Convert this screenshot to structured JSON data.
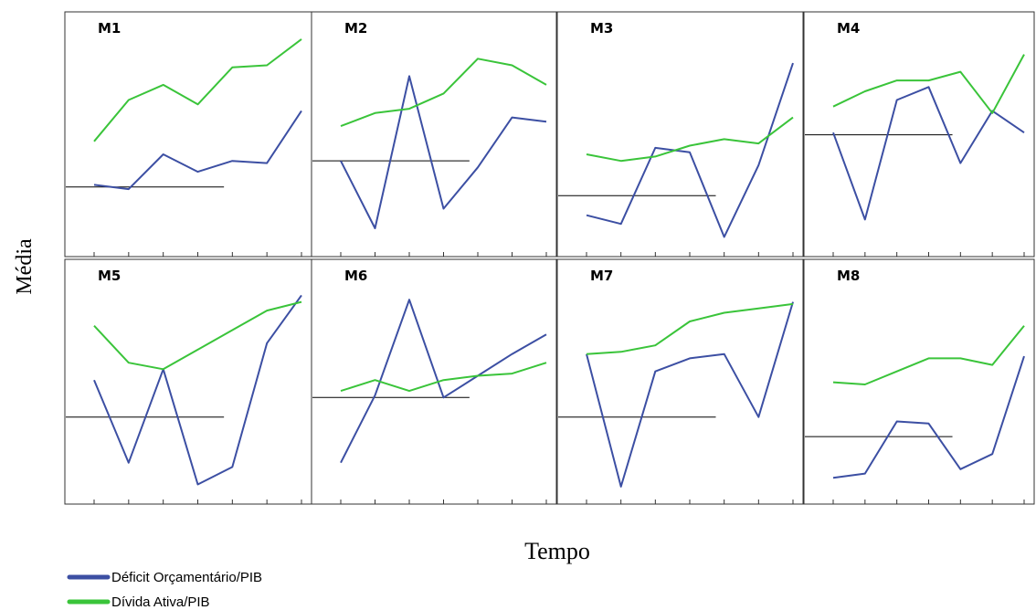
{
  "colors": {
    "deficit": "#3c4fa3",
    "divida": "#3ac43a",
    "reference": "#000000",
    "frame": "#333333"
  },
  "chart_data": {
    "type": "line",
    "xlabel": "Tempo",
    "ylabel": "Média",
    "grid": false,
    "ylim": [
      0,
      100
    ],
    "x": [
      1,
      2,
      3,
      4,
      5,
      6,
      7
    ],
    "legend": {
      "placement": "bottom-left",
      "entries": [
        {
          "label": "Déficit Orçamentário/PIB",
          "color": "#3c4fa3"
        },
        {
          "label": "Dívida Ativa/PIB",
          "color": "#3ac43a"
        }
      ]
    },
    "panels": [
      {
        "title": "M1",
        "reference": 27,
        "series": [
          {
            "name": "Déficit Orçamentário/PIB",
            "values": [
              28,
              26,
              42,
              34,
              39,
              38,
              62
            ]
          },
          {
            "name": "Dívida Ativa/PIB",
            "values": [
              48,
              67,
              74,
              65,
              82,
              83,
              95
            ]
          }
        ]
      },
      {
        "title": "M2",
        "reference": 39,
        "series": [
          {
            "name": "Déficit Orçamentário/PIB",
            "values": [
              39,
              8,
              78,
              17,
              36,
              59,
              57
            ]
          },
          {
            "name": "Dívida Ativa/PIB",
            "values": [
              55,
              61,
              63,
              70,
              86,
              83,
              74
            ]
          }
        ]
      },
      {
        "title": "M3",
        "reference": 23,
        "series": [
          {
            "name": "Déficit Orçamentário/PIB",
            "values": [
              14,
              10,
              45,
              43,
              4,
              37,
              84
            ]
          },
          {
            "name": "Dívida Ativa/PIB",
            "values": [
              42,
              39,
              41,
              46,
              49,
              47,
              59
            ]
          }
        ]
      },
      {
        "title": "M4",
        "reference": 51,
        "series": [
          {
            "name": "Déficit Orçamentário/PIB",
            "values": [
              52,
              12,
              67,
              73,
              38,
              62,
              52
            ]
          },
          {
            "name": "Dívida Ativa/PIB",
            "values": [
              64,
              71,
              76,
              76,
              80,
              61,
              88
            ]
          }
        ]
      },
      {
        "title": "M5",
        "reference": 35,
        "series": [
          {
            "name": "Déficit Orçamentário/PIB",
            "values": [
              52,
              14,
              57,
              4,
              12,
              69,
              91
            ]
          },
          {
            "name": "Dívida Ativa/PIB",
            "values": [
              77,
              60,
              57,
              66,
              75,
              84,
              88
            ]
          }
        ]
      },
      {
        "title": "M6",
        "reference": 44,
        "series": [
          {
            "name": "Déficit Orçamentário/PIB",
            "values": [
              14,
              45,
              89,
              44,
              54,
              64,
              73
            ]
          },
          {
            "name": "Dívida Ativa/PIB",
            "values": [
              47,
              52,
              47,
              52,
              54,
              55,
              60
            ]
          }
        ]
      },
      {
        "title": "M7",
        "reference": 35,
        "series": [
          {
            "name": "Déficit Orçamentário/PIB",
            "values": [
              64,
              3,
              56,
              62,
              64,
              35,
              88
            ]
          },
          {
            "name": "Dívida Ativa/PIB",
            "values": [
              64,
              65,
              68,
              79,
              83,
              85,
              87
            ]
          }
        ]
      },
      {
        "title": "M8",
        "reference": 26,
        "series": [
          {
            "name": "Déficit Orçamentário/PIB",
            "values": [
              7,
              9,
              33,
              32,
              11,
              18,
              63
            ]
          },
          {
            "name": "Dívida Ativa/PIB",
            "values": [
              51,
              50,
              56,
              62,
              62,
              59,
              77
            ]
          }
        ]
      }
    ]
  }
}
